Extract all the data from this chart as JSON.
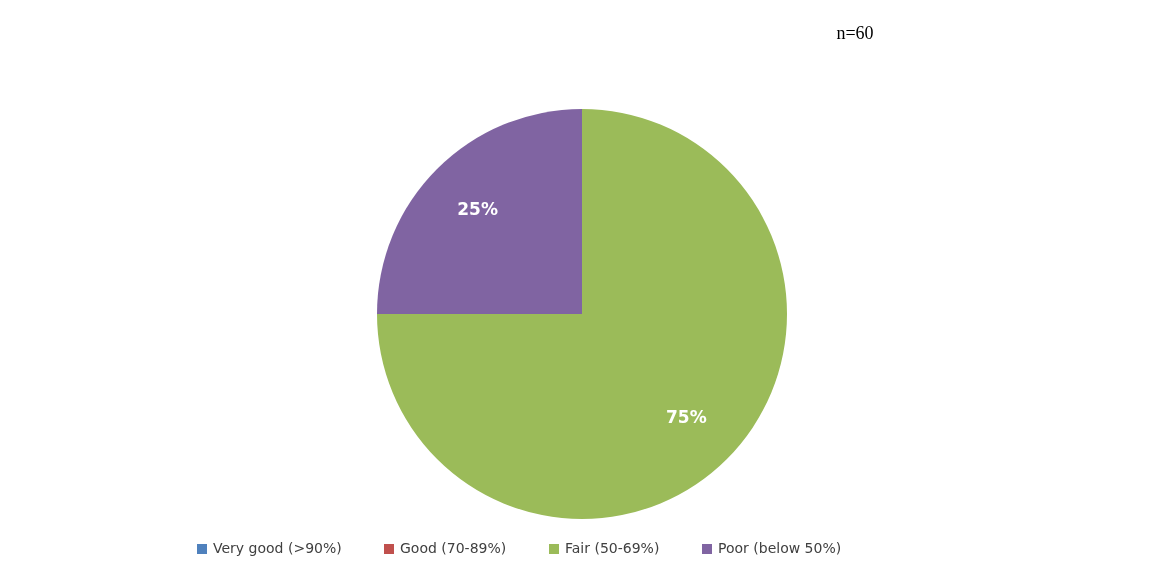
{
  "chart_data": {
    "type": "pie",
    "categories": [
      "Very good (>90%)",
      "Good (70-89%)",
      "Fair (50-69%)",
      "Poor (below 50%)"
    ],
    "values": [
      0,
      0,
      75,
      25
    ],
    "colors": [
      "#4f81bd",
      "#c0504d",
      "#9bbb59",
      "#8064a2"
    ],
    "value_labels": [
      null,
      null,
      "75%",
      "25%"
    ],
    "legend": "bottom",
    "annotations": [
      "n=60"
    ]
  }
}
